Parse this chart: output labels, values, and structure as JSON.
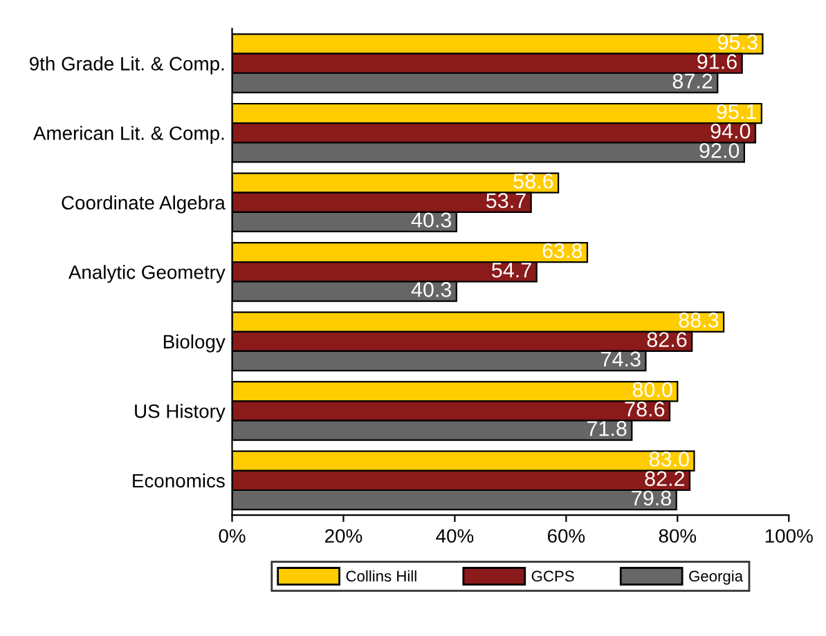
{
  "chart_data": {
    "type": "bar",
    "orientation": "horizontal",
    "categories": [
      "9th Grade Lit. & Comp.",
      "American Lit. & Comp.",
      "Coordinate Algebra",
      "Analytic Geometry",
      "Biology",
      "US History",
      "Economics"
    ],
    "series": [
      {
        "name": "Collins Hill",
        "color": "#ffcc00",
        "values": [
          95.3,
          95.1,
          58.6,
          63.8,
          88.3,
          80.0,
          83.0
        ],
        "value_labels": [
          "95.3",
          "95.1",
          "58.6",
          "63.8",
          "88.3",
          "80.0",
          "83.0"
        ]
      },
      {
        "name": "GCPS",
        "color": "#8b1a1a",
        "values": [
          91.6,
          94.0,
          53.7,
          54.7,
          82.6,
          78.6,
          82.2
        ],
        "value_labels": [
          "91.6",
          "94.0",
          "53.7",
          "54.7",
          "82.6",
          "78.6",
          "82.2"
        ]
      },
      {
        "name": "Georgia",
        "color": "#666666",
        "values": [
          87.2,
          92.0,
          40.3,
          40.3,
          74.3,
          71.8,
          79.8
        ],
        "value_labels": [
          "87.2",
          "92.0",
          "40.3",
          "40.3",
          "74.3",
          "71.8",
          "79.8"
        ]
      }
    ],
    "xlim": [
      0,
      100
    ],
    "xticks": [
      {
        "value": 0,
        "label": "0%"
      },
      {
        "value": 20,
        "label": "20%"
      },
      {
        "value": 40,
        "label": "40%"
      },
      {
        "value": 60,
        "label": "60%"
      },
      {
        "value": 80,
        "label": "80%"
      },
      {
        "value": 100,
        "label": "100%"
      }
    ],
    "legend": "bottom",
    "grid": false
  }
}
